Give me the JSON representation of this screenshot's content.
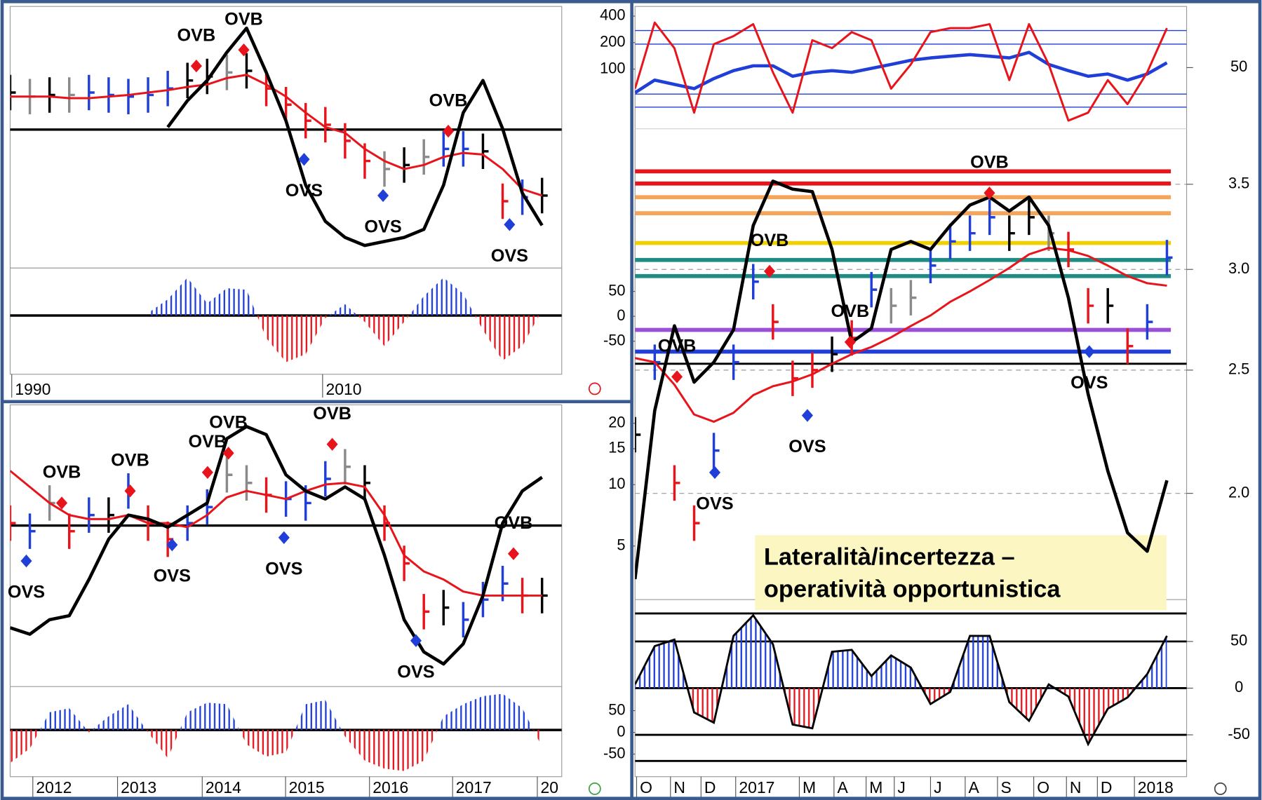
{
  "chart_data": [
    {
      "type": "line",
      "xlim": [
        0,
        28
      ],
      "ylim": [
        0,
        325
      ],
      "hlines": [
        {
          "value": 172,
          "color": "#000000"
        }
      ],
      "series": [
        {
          "type": "ohlc",
          "values": [
            218,
            213,
            215,
            215,
            218,
            215,
            213,
            215,
            223,
            233,
            238,
            243,
            245,
            223,
            203,
            183,
            178,
            158,
            133,
            123,
            128,
            138,
            148,
            148,
            145,
            83,
            88,
            90
          ],
          "colors": [
            "#000000",
            "#8a8a8a",
            "#000000",
            "#8a8a8a",
            "#1f3fd8",
            "#1f3fd8",
            "#1f3fd8",
            "#1f3fd8",
            "#1f3fd8",
            "#000000",
            "#000000",
            "#8a8a8a",
            "#000000",
            "#e8141b",
            "#e8141b",
            "#e8141b",
            "#e8141b",
            "#e8141b",
            "#e8141b",
            "#8a8a8a",
            "#000000",
            "#8a8a8a",
            "#1f3fd8",
            "#1f3fd8",
            "#000000",
            "#e8141b",
            "#1f3fd8",
            "#000000"
          ]
        },
        {
          "type": "line",
          "color": "#e8141b",
          "values": [
            213,
            213,
            213,
            211,
            211,
            213,
            215,
            218,
            221,
            225,
            228,
            236,
            240,
            228,
            213,
            193,
            175,
            168,
            148,
            133,
            123,
            128,
            138,
            143,
            141,
            123,
            98,
            90
          ]
        },
        {
          "type": "line",
          "color": "#000000",
          "values": [
            null,
            null,
            null,
            null,
            null,
            null,
            null,
            null,
            175,
            208,
            233,
            268,
            298,
            243,
            183,
            103,
            58,
            38,
            28,
            33,
            38,
            48,
            103,
            193,
            233,
            173,
            93,
            53
          ]
        }
      ],
      "markers_up": {
        "color": "#e8141b",
        "points": [
          {
            "x": 9.45,
            "y": 251,
            "label": "OVB"
          },
          {
            "x": 11.86,
            "y": 271,
            "label": "OVB"
          },
          {
            "x": 22.24,
            "y": 170,
            "label": "OVB"
          }
        ]
      },
      "markers_down": {
        "color": "#1f3fd8",
        "points": [
          {
            "x": 14.92,
            "y": 135,
            "label": "OVS"
          },
          {
            "x": 18.93,
            "y": 90,
            "label": "OVS"
          },
          {
            "x": 25.35,
            "y": 54,
            "label": "OVS"
          }
        ]
      }
    },
    {
      "type": "histogram",
      "xlim": [
        0,
        28
      ],
      "ylim": [
        -73,
        59
      ],
      "hlines": [
        {
          "value": 0,
          "color": "#000000"
        }
      ],
      "series": [
        {
          "type": "histogram",
          "colors": [
            "#1f3fd8",
            "#e8141b"
          ],
          "values": [
            null,
            null,
            null,
            null,
            null,
            null,
            null,
            3,
            20,
            47,
            15,
            34,
            32,
            -28,
            -58,
            -48,
            -3,
            14,
            -8,
            -38,
            -8,
            24,
            47,
            27,
            -18,
            -56,
            -38,
            7
          ]
        }
      ],
      "xticks": [
        {
          "value": 0.08,
          "label": "1990"
        },
        {
          "value": 15.86,
          "label": "2010"
        }
      ]
    },
    {
      "type": "line",
      "xlim": [
        0,
        28
      ],
      "ylim": [
        0,
        350
      ],
      "hlines": [
        {
          "value": 200,
          "color": "#000000"
        }
      ],
      "series": [
        {
          "type": "ohlc",
          "values": [
            203,
            193,
            228,
            193,
            213,
            213,
            243,
            203,
            183,
            203,
            223,
            263,
            253,
            238,
            233,
            228,
            258,
            273,
            253,
            203,
            153,
            93,
            98,
            83,
            108,
            128,
            113,
            113
          ],
          "colors": [
            "#e8141b",
            "#1f3fd8",
            "#8a8a8a",
            "#e8141b",
            "#1f3fd8",
            "#000000",
            "#1f3fd8",
            "#e8141b",
            "#e8141b",
            "#1f3fd8",
            "#1f3fd8",
            "#8a8a8a",
            "#8a8a8a",
            "#e8141b",
            "#1f3fd8",
            "#1f3fd8",
            "#1f3fd8",
            "#8a8a8a",
            "#000000",
            "#e8141b",
            "#e8141b",
            "#e8141b",
            "#000000",
            "#1f3fd8",
            "#1f3fd8",
            "#1f3fd8",
            "#e8141b",
            "#000000"
          ]
        },
        {
          "type": "line",
          "color": "#e8141b",
          "values": [
            268,
            248,
            228,
            213,
            208,
            208,
            213,
            203,
            203,
            198,
            213,
            235,
            243,
            238,
            233,
            243,
            251,
            253,
            248,
            213,
            163,
            143,
            133,
            118,
            113,
            113,
            113,
            113
          ]
        },
        {
          "type": "line",
          "color": "#000000",
          "values": [
            73,
            65,
            83,
            88,
            133,
            183,
            213,
            208,
            198,
            213,
            228,
            308,
            323,
            313,
            263,
            243,
            233,
            248,
            233,
            163,
            83,
            43,
            28,
            53,
            113,
            203,
            243,
            260
          ]
        }
      ],
      "markers_up": {
        "color": "#e8141b",
        "points": [
          {
            "x": 2.62,
            "y": 228,
            "label": "OVB"
          },
          {
            "x": 6.09,
            "y": 243,
            "label": "OVB"
          },
          {
            "x": 10.02,
            "y": 266,
            "label": "OVB"
          },
          {
            "x": 11.08,
            "y": 290,
            "label": "OVB"
          },
          {
            "x": 16.35,
            "y": 301,
            "label": "OVB"
          },
          {
            "x": 25.55,
            "y": 165,
            "label": "OVB"
          }
        ]
      },
      "markers_down": {
        "color": "#1f3fd8",
        "points": [
          {
            "x": 0.82,
            "y": 156,
            "label": "OVS"
          },
          {
            "x": 8.22,
            "y": 176,
            "label": "OVS"
          },
          {
            "x": 13.9,
            "y": 185,
            "label": "OVS"
          },
          {
            "x": 20.6,
            "y": 57,
            "label": "OVS"
          }
        ]
      }
    },
    {
      "type": "histogram",
      "xlim": [
        0,
        28
      ],
      "ylim": [
        -58,
        54
      ],
      "hlines": [
        {
          "value": 0,
          "color": "#000000"
        }
      ],
      "series": [
        {
          "type": "histogram",
          "colors": [
            "#1f3fd8",
            "#e8141b"
          ],
          "values": [
            -41,
            -23,
            22,
            27,
            -3,
            17,
            32,
            -3,
            -35,
            22,
            34,
            32,
            -18,
            -33,
            -28,
            32,
            37,
            -8,
            -38,
            -48,
            -51,
            -38,
            17,
            32,
            42,
            45,
            27,
            -21
          ]
        }
      ],
      "xticks": [
        {
          "value": 1.15,
          "label": "2012"
        },
        {
          "value": 5.45,
          "label": "2013"
        },
        {
          "value": 9.75,
          "label": "2014"
        },
        {
          "value": 13.98,
          "label": "2015"
        },
        {
          "value": 18.24,
          "label": "2016"
        },
        {
          "value": 22.46,
          "label": "2017"
        },
        {
          "value": 26.76,
          "label": "20"
        }
      ]
    },
    {
      "type": "line",
      "xlim": [
        0,
        28
      ],
      "ylim": [
        21,
        515
      ],
      "ylog": true,
      "yticks": [
        400,
        200,
        100
      ],
      "y2lim": [
        40,
        60
      ],
      "y2ticks": [
        50
      ],
      "hlines": [
        {
          "value": 274,
          "color": "#1f3fd8"
        },
        {
          "value": 192,
          "color": "#1f3fd8"
        },
        {
          "value": 52,
          "color": "#1f3fd8"
        },
        {
          "value": 37,
          "color": "#1f3fd8"
        }
      ],
      "series": [
        {
          "type": "line",
          "color": "#1f3fd8",
          "values": [
            54,
            75,
            67,
            60,
            78,
            96,
            109,
            109,
            83,
            92,
            96,
            92,
            102,
            113,
            126,
            134,
            140,
            146,
            140,
            134,
            155,
            113,
            96,
            83,
            88,
            75,
            88,
            118
          ]
        },
        {
          "type": "line",
          "color": "#e8141b",
          "values": [
            60,
            338,
            173,
            32,
            192,
            237,
            324,
            92,
            32,
            213,
            173,
            263,
            213,
            60,
            113,
            263,
            292,
            292,
            324,
            75,
            324,
            113,
            26,
            32,
            75,
            40,
            92,
            292
          ]
        }
      ]
    },
    {
      "type": "line",
      "xlim": [
        0,
        28
      ],
      "ylim": [
        -568,
        376
      ],
      "yticks": [
        50,
        0,
        -50
      ],
      "y2lim": [
        1.65,
        3.87
      ],
      "y2log": true,
      "y2ticks": [
        3.5,
        {
          "value": 3,
          "label": "3.0"
        },
        2.5,
        {
          "value": 2,
          "label": "2.0"
        }
      ],
      "y3lim": [
        2.73,
        556
      ],
      "y3log": true,
      "y3ticks": [
        20,
        15,
        10,
        5
      ],
      "grid": true,
      "hlines": [
        {
          "value": 3.583,
          "color": "#e8141b",
          "axis": "y2"
        },
        {
          "value": 3.505,
          "color": "#e8141b",
          "axis": "y2"
        },
        {
          "value": 3.419,
          "color": "#f5a55a",
          "axis": "y2"
        },
        {
          "value": 3.321,
          "color": "#f5a55a",
          "axis": "y2"
        },
        {
          "value": 3.147,
          "color": "#f2d000",
          "axis": "y2"
        },
        {
          "value": 3.052,
          "color": "#1e8c84",
          "axis": "y2"
        },
        {
          "value": 2.964,
          "color": "#1e8c84",
          "axis": "y2"
        },
        {
          "value": 2.689,
          "color": "#9a4fd8",
          "axis": "y2"
        },
        {
          "value": 2.585,
          "color": "#1f3fd8",
          "axis": "y2"
        },
        {
          "value": 2.529,
          "color": "#000000",
          "axis": "y2"
        }
      ],
      "series": [
        {
          "type": "ohlc",
          "axis": "y2",
          "values": [
            2.224,
            2.536,
            2.038,
            1.895,
            2.161,
            2.536,
            2.934,
            2.728,
            2.463,
            2.5,
            2.573,
            2.65,
            2.892,
            2.809,
            2.85,
            3.021,
            3.156,
            3.203,
            3.297,
            3.203,
            3.297,
            3.203,
            3.11,
            2.809,
            2.809,
            2.611,
            2.728,
            3.065
          ],
          "colors": [
            "#000000",
            "#1f3fd8",
            "#e8141b",
            "#e8141b",
            "#1f3fd8",
            "#1f3fd8",
            "#1f3fd8",
            "#e8141b",
            "#e8141b",
            "#e8141b",
            "#000000",
            "#e8141b",
            "#1f3fd8",
            "#8a8a8a",
            "#8a8a8a",
            "#1f3fd8",
            "#1f3fd8",
            "#1f3fd8",
            "#1f3fd8",
            "#000000",
            "#000000",
            "#8a8a8a",
            "#e8141b",
            "#e8141b",
            "#000000",
            "#e8141b",
            "#1f3fd8",
            "#1f3fd8"
          ]
        },
        {
          "type": "line",
          "axis": "y2",
          "color": "#e8141b",
          "values": [
            2.555,
            2.536,
            2.435,
            2.307,
            2.277,
            2.314,
            2.389,
            2.428,
            2.449,
            2.481,
            2.529,
            2.573,
            2.607,
            2.653,
            2.708,
            2.76,
            2.829,
            2.883,
            2.943,
            3.008,
            3.083,
            3.119,
            3.106,
            3.074,
            3.021,
            2.964,
            2.926,
            2.913
          ]
        },
        {
          "type": "line",
          "color": "#000000",
          "values": [
            -527,
            -189,
            -19,
            -132,
            -92,
            -27,
            182,
            271,
            255,
            250,
            134,
            -52,
            -24,
            134,
            150,
            134,
            182,
            223,
            239,
            211,
            239,
            182,
            37,
            -156,
            -310,
            -434,
            -471,
            -329
          ]
        }
      ],
      "markers_up": {
        "color": "#e8141b",
        "axis": "y2",
        "points": [
          {
            "x": 2.13,
            "y": 2.47,
            "label": "OVB"
          },
          {
            "x": 6.83,
            "y": 2.99,
            "label": "OVB"
          },
          {
            "x": 10.92,
            "y": 2.63,
            "label": "OVB"
          },
          {
            "x": 17.99,
            "y": 3.445,
            "label": "OVB"
          }
        ]
      },
      "markers_down": {
        "color": "#1f3fd8",
        "axis": "y2",
        "points": [
          {
            "x": 4.05,
            "y": 2.077,
            "label": "OVS"
          },
          {
            "x": 8.75,
            "y": 2.303,
            "label": "OVS"
          },
          {
            "x": 23.06,
            "y": 2.585,
            "label": "OVS"
          }
        ]
      },
      "note": [
        "Lateralità/incertezza –",
        "operatività opportunistica"
      ]
    },
    {
      "type": "histogram",
      "xlim": [
        0,
        28
      ],
      "ylim": [
        -102,
        278
      ],
      "yticks": [
        50,
        0,
        -50
      ],
      "y2lim": [
        -94.8,
        81.9
      ],
      "y2ticks": [
        50,
        0,
        -50
      ],
      "hlines": [
        {
          "value": 80,
          "color": "#000000",
          "axis": "y2"
        },
        {
          "value": 50,
          "color": "#000000",
          "axis": "y2"
        },
        {
          "value": 0,
          "color": "#000000",
          "axis": "y2"
        },
        {
          "value": -50,
          "color": "#000000",
          "axis": "y2"
        },
        {
          "value": -78,
          "color": "#000000",
          "axis": "y2"
        }
      ],
      "series": [
        {
          "type": "histogram",
          "axis": "y2",
          "color": "#000000",
          "colors": [
            "#1f3fd8",
            "#e8141b"
          ],
          "values": [
            4,
            45,
            52,
            -26,
            -37,
            56,
            78,
            47,
            -39,
            -43,
            39,
            41,
            13,
            35,
            22,
            -17,
            -4,
            56,
            56,
            -15,
            -35,
            4,
            -9,
            -60,
            -22,
            -10,
            15,
            56
          ]
        }
      ],
      "xticks": [
        {
          "value": 0.08,
          "label": "O"
        },
        {
          "value": 1.8,
          "label": "N"
        },
        {
          "value": 3.35,
          "label": "D"
        },
        {
          "value": 5.11,
          "label": "2017"
        },
        {
          "value": 8.34,
          "label": "M"
        },
        {
          "value": 10.1,
          "label": "A"
        },
        {
          "value": 11.73,
          "label": "M"
        },
        {
          "value": 13.16,
          "label": "J"
        },
        {
          "value": 15.0,
          "label": "J"
        },
        {
          "value": 16.76,
          "label": "A"
        },
        {
          "value": 18.4,
          "label": "S"
        },
        {
          "value": 20.24,
          "label": "O"
        },
        {
          "value": 21.9,
          "label": "N"
        },
        {
          "value": 23.47,
          "label": "D"
        },
        {
          "value": 25.35,
          "label": "2018"
        }
      ]
    }
  ]
}
